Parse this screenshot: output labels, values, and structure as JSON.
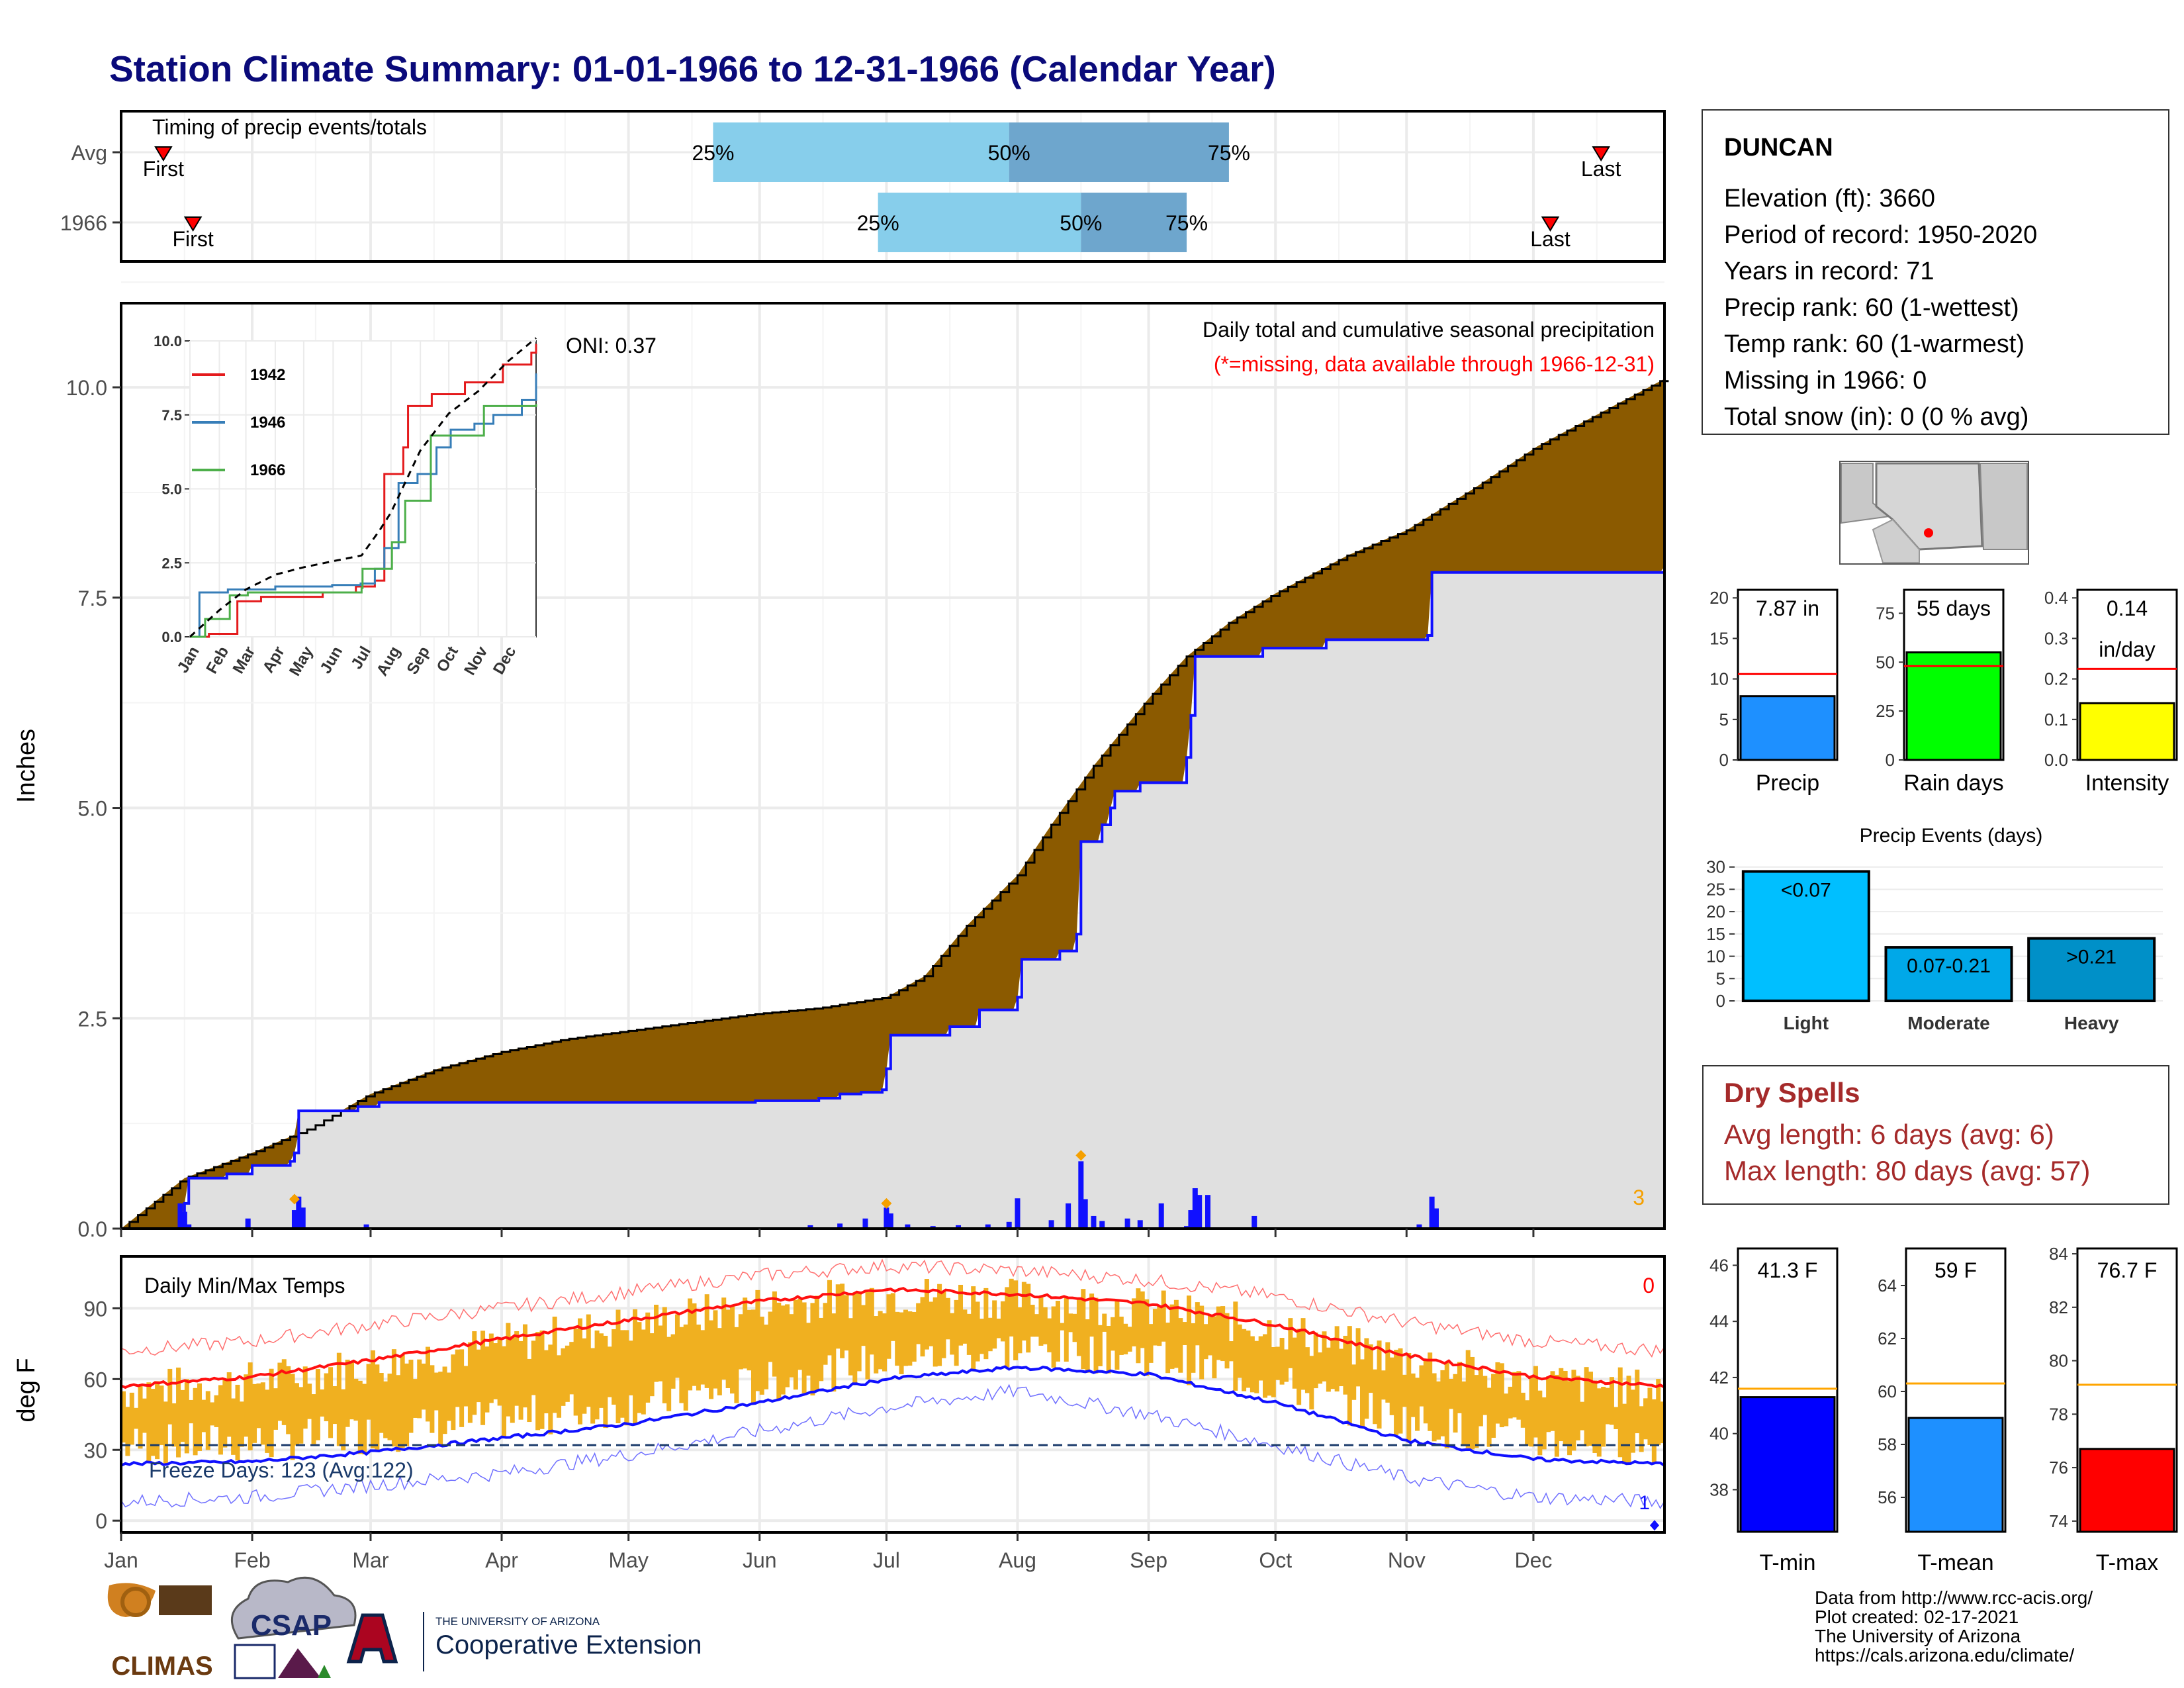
{
  "title": "Station Climate Summary: 01-01-1966 to 12-31-1966 (Calendar Year)",
  "colors": {
    "title": "#0a0a7a",
    "brown": "#8b5a00",
    "gray_fill": "#e0e0e0",
    "blue_line": "#1010ff",
    "green_fill": "#0a8a0a",
    "temp_bar": "#f0b020",
    "red_line": "#ff1010",
    "light_blue": "#87ceeb",
    "mid_blue": "#6ea6cd",
    "spell_red": "#a52a2a"
  },
  "months": [
    "Jan",
    "Feb",
    "Mar",
    "Apr",
    "May",
    "Jun",
    "Jul",
    "Aug",
    "Sep",
    "Oct",
    "Nov",
    "Dec"
  ],
  "timing": {
    "label": "Timing of precip events/totals",
    "rows": [
      {
        "name": "Avg",
        "first_doy": 10,
        "last_doy": 350,
        "p25_doy": 140,
        "p50_doy": 210,
        "p75_doy": 262
      },
      {
        "name": "1966",
        "first_doy": 17,
        "last_doy": 338,
        "p25_doy": 179,
        "p50_doy": 227,
        "p75_doy": 252
      }
    ],
    "labels": {
      "first": "First",
      "last": "Last",
      "p25": "25%",
      "p50": "50%",
      "p75": "75%"
    }
  },
  "precip_panel": {
    "ylabel": "Inches",
    "ylim": [
      0,
      11
    ],
    "yticks": [
      0.0,
      2.5,
      5.0,
      7.5,
      10.0
    ],
    "oni": "ONI: 0.37",
    "subtitle": "Daily total and cumulative seasonal precipitation",
    "note": "(*=missing, data available through 1966-12-31)",
    "corner_number": "3",
    "avg_cumulative": [
      [
        0,
        0
      ],
      [
        15,
        0.6
      ],
      [
        31,
        0.9
      ],
      [
        45,
        1.2
      ],
      [
        59,
        1.6
      ],
      [
        75,
        1.9
      ],
      [
        90,
        2.1
      ],
      [
        105,
        2.25
      ],
      [
        120,
        2.35
      ],
      [
        135,
        2.45
      ],
      [
        150,
        2.55
      ],
      [
        165,
        2.62
      ],
      [
        181,
        2.75
      ],
      [
        190,
        3.0
      ],
      [
        200,
        3.6
      ],
      [
        212,
        4.2
      ],
      [
        220,
        4.8
      ],
      [
        230,
        5.5
      ],
      [
        243,
        6.3
      ],
      [
        252,
        6.8
      ],
      [
        262,
        7.2
      ],
      [
        273,
        7.55
      ],
      [
        290,
        8.0
      ],
      [
        304,
        8.3
      ],
      [
        320,
        8.8
      ],
      [
        335,
        9.3
      ],
      [
        350,
        9.7
      ],
      [
        365,
        10.1
      ]
    ],
    "cumulative_1966": [
      [
        0,
        0
      ],
      [
        15,
        0.3
      ],
      [
        16,
        0.6
      ],
      [
        25,
        0.65
      ],
      [
        31,
        0.75
      ],
      [
        40,
        0.8
      ],
      [
        41,
        0.9
      ],
      [
        42,
        1.4
      ],
      [
        56,
        1.45
      ],
      [
        61,
        1.5
      ],
      [
        150,
        1.52
      ],
      [
        165,
        1.55
      ],
      [
        170,
        1.6
      ],
      [
        175,
        1.62
      ],
      [
        180,
        1.65
      ],
      [
        181,
        1.9
      ],
      [
        182,
        2.3
      ],
      [
        196,
        2.4
      ],
      [
        203,
        2.6
      ],
      [
        212,
        2.75
      ],
      [
        213,
        3.2
      ],
      [
        222,
        3.3
      ],
      [
        226,
        3.5
      ],
      [
        227,
        4.6
      ],
      [
        232,
        4.8
      ],
      [
        234,
        5.0
      ],
      [
        235,
        5.2
      ],
      [
        241,
        5.3
      ],
      [
        251,
        5.3
      ],
      [
        252,
        5.6
      ],
      [
        253,
        6.1
      ],
      [
        254,
        6.8
      ],
      [
        270,
        6.9
      ],
      [
        285,
        7.0
      ],
      [
        309,
        7.05
      ],
      [
        310,
        7.8
      ],
      [
        365,
        7.87
      ]
    ],
    "daily_bars": [
      [
        14,
        0.3
      ],
      [
        15,
        0.2
      ],
      [
        16,
        0.05
      ],
      [
        30,
        0.12
      ],
      [
        41,
        0.22
      ],
      [
        42,
        0.38
      ],
      [
        43,
        0.25
      ],
      [
        58,
        0.05
      ],
      [
        163,
        0.04
      ],
      [
        170,
        0.06
      ],
      [
        176,
        0.12
      ],
      [
        181,
        0.25
      ],
      [
        182,
        0.18
      ],
      [
        186,
        0.05
      ],
      [
        192,
        0.03
      ],
      [
        198,
        0.04
      ],
      [
        205,
        0.05
      ],
      [
        210,
        0.08
      ],
      [
        212,
        0.36
      ],
      [
        220,
        0.1
      ],
      [
        224,
        0.3
      ],
      [
        227,
        0.8
      ],
      [
        228,
        0.35
      ],
      [
        230,
        0.15
      ],
      [
        232,
        0.09
      ],
      [
        238,
        0.12
      ],
      [
        241,
        0.1
      ],
      [
        246,
        0.3
      ],
      [
        252,
        0.03
      ],
      [
        253,
        0.22
      ],
      [
        254,
        0.48
      ],
      [
        255,
        0.4
      ],
      [
        257,
        0.4
      ],
      [
        268,
        0.15
      ],
      [
        307,
        0.05
      ],
      [
        310,
        0.38
      ],
      [
        311,
        0.24
      ]
    ],
    "markers": [
      [
        41,
        0.35
      ],
      [
        181,
        0.3
      ],
      [
        227,
        0.87
      ]
    ]
  },
  "inset": {
    "ylim": [
      0,
      10
    ],
    "yticks": [
      "0.0",
      "2.5",
      "5.0",
      "7.5",
      "10.0"
    ],
    "legend": [
      "1942",
      "1946",
      "1966"
    ],
    "series": [
      {
        "name": "1942",
        "color": "#e41a1c",
        "points": [
          [
            0,
            0
          ],
          [
            20,
            0.1
          ],
          [
            45,
            0.1
          ],
          [
            50,
            1.2
          ],
          [
            75,
            1.35
          ],
          [
            140,
            1.5
          ],
          [
            175,
            1.7
          ],
          [
            195,
            1.9
          ],
          [
            205,
            5.5
          ],
          [
            225,
            6.4
          ],
          [
            230,
            7.8
          ],
          [
            255,
            8.2
          ],
          [
            290,
            8.6
          ],
          [
            330,
            9.2
          ],
          [
            360,
            9.6
          ],
          [
            365,
            9.9
          ]
        ]
      },
      {
        "name": "1946",
        "color": "#377eb8",
        "points": [
          [
            0,
            0
          ],
          [
            10,
            1.5
          ],
          [
            40,
            1.6
          ],
          [
            90,
            1.7
          ],
          [
            150,
            1.75
          ],
          [
            180,
            1.8
          ],
          [
            195,
            2.3
          ],
          [
            205,
            3.0
          ],
          [
            220,
            5.2
          ],
          [
            240,
            5.5
          ],
          [
            260,
            6.4
          ],
          [
            275,
            7.0
          ],
          [
            300,
            7.2
          ],
          [
            320,
            7.5
          ],
          [
            350,
            8.0
          ],
          [
            365,
            8.9
          ]
        ]
      },
      {
        "name": "1966",
        "color": "#4daf4a",
        "points": [
          [
            0,
            0
          ],
          [
            16,
            0.6
          ],
          [
            42,
            1.4
          ],
          [
            61,
            1.5
          ],
          [
            181,
            1.65
          ],
          [
            182,
            2.3
          ],
          [
            213,
            3.2
          ],
          [
            227,
            4.6
          ],
          [
            254,
            6.8
          ],
          [
            310,
            7.8
          ],
          [
            365,
            7.87
          ]
        ]
      }
    ],
    "avg_points": [
      [
        0,
        0
      ],
      [
        31,
        0.9
      ],
      [
        59,
        1.6
      ],
      [
        90,
        2.1
      ],
      [
        120,
        2.35
      ],
      [
        150,
        2.55
      ],
      [
        181,
        2.75
      ],
      [
        200,
        3.6
      ],
      [
        212,
        4.2
      ],
      [
        243,
        6.3
      ],
      [
        273,
        7.55
      ],
      [
        304,
        8.3
      ],
      [
        335,
        9.3
      ],
      [
        365,
        10.1
      ]
    ]
  },
  "temp_panel": {
    "ylabel": "deg F",
    "ylim": [
      -5,
      112
    ],
    "yticks": [
      0,
      30,
      60,
      90
    ],
    "label": "Daily Min/Max Temps",
    "corner_number": "0",
    "bottom_number": "1",
    "freeze_line": 32,
    "freeze_text": "Freeze Days: 123 (Avg:122)",
    "avg_max": [
      [
        0,
        57
      ],
      [
        31,
        61
      ],
      [
        59,
        68
      ],
      [
        90,
        77
      ],
      [
        120,
        85
      ],
      [
        151,
        93
      ],
      [
        181,
        98
      ],
      [
        212,
        96
      ],
      [
        243,
        92
      ],
      [
        273,
        83
      ],
      [
        304,
        70
      ],
      [
        334,
        61
      ],
      [
        365,
        57
      ]
    ],
    "avg_min": [
      [
        0,
        24
      ],
      [
        31,
        25
      ],
      [
        59,
        29
      ],
      [
        90,
        35
      ],
      [
        120,
        41
      ],
      [
        151,
        50
      ],
      [
        181,
        60
      ],
      [
        212,
        65
      ],
      [
        243,
        62
      ],
      [
        273,
        50
      ],
      [
        304,
        34
      ],
      [
        334,
        26
      ],
      [
        365,
        24
      ]
    ],
    "rec_max": [
      [
        0,
        72
      ],
      [
        31,
        76
      ],
      [
        59,
        83
      ],
      [
        90,
        90
      ],
      [
        120,
        97
      ],
      [
        151,
        104
      ],
      [
        181,
        108
      ],
      [
        212,
        106
      ],
      [
        243,
        102
      ],
      [
        273,
        95
      ],
      [
        304,
        84
      ],
      [
        334,
        76
      ],
      [
        365,
        72
      ]
    ],
    "rec_min": [
      [
        0,
        8
      ],
      [
        31,
        10
      ],
      [
        59,
        15
      ],
      [
        90,
        20
      ],
      [
        120,
        28
      ],
      [
        151,
        38
      ],
      [
        181,
        48
      ],
      [
        212,
        55
      ],
      [
        243,
        45
      ],
      [
        273,
        32
      ],
      [
        304,
        18
      ],
      [
        334,
        10
      ],
      [
        365,
        8
      ]
    ]
  },
  "station": {
    "name": "DUNCAN",
    "lines": [
      "Elevation (ft): 3660",
      "Period of record: 1950-2020",
      "Years in record: 71",
      "Precip rank: 60 (1-wettest)",
      "Temp rank: 60 (1-warmest)",
      "Missing in 1966: 0",
      "Total snow (in): 0 (0 % avg)"
    ]
  },
  "mini_bars": [
    {
      "label": "Precip",
      "value_text": "7.87 in",
      "value": 7.87,
      "avg": 10.6,
      "ymax": 21,
      "yticks": [
        "0",
        "5",
        "10",
        "15",
        "20"
      ],
      "tickvals": [
        0,
        5,
        10,
        15,
        20
      ],
      "color": "#1e90ff"
    },
    {
      "label": "Rain days",
      "value_text": "55 days",
      "value": 55,
      "avg": 48,
      "ymax": 87,
      "yticks": [
        "0",
        "25",
        "50",
        "75"
      ],
      "tickvals": [
        0,
        25,
        50,
        75
      ],
      "color": "#00ff00"
    },
    {
      "label": "Intensity",
      "value_text": "0.14",
      "value_text2": "in/day",
      "value": 0.14,
      "avg": 0.225,
      "ymax": 0.42,
      "yticks": [
        "0.0",
        "0.1",
        "0.2",
        "0.3",
        "0.4"
      ],
      "tickvals": [
        0,
        0.1,
        0.2,
        0.3,
        0.4
      ],
      "color": "#ffff00"
    }
  ],
  "events": {
    "title": "Precip Events (days)",
    "ymax": 31,
    "yticks": [
      "0",
      "5",
      "10",
      "15",
      "20",
      "25",
      "30"
    ],
    "bars": [
      {
        "label": "Light",
        "range": "<0.07",
        "value": 29,
        "color": "#00bfff"
      },
      {
        "label": "Moderate",
        "range": "0.07-0.21",
        "value": 12,
        "color": "#00a8e8"
      },
      {
        "label": "Heavy",
        "range": ">0.21",
        "value": 14,
        "color": "#0090c8"
      }
    ]
  },
  "dry_spells": {
    "title": "Dry Spells",
    "lines": [
      "Avg length: 6 days (avg: 6)",
      "Max length: 80 days (avg: 57)"
    ]
  },
  "temp_bars": [
    {
      "label": "T-min",
      "value_text": "41.3 F",
      "value": 41.3,
      "avg": 41.6,
      "ymin": 36.5,
      "ymax": 46.6,
      "tickvals": [
        38,
        40,
        42,
        44,
        46
      ],
      "color": "#0000ff"
    },
    {
      "label": "T-mean",
      "value_text": "59 F",
      "value": 59.0,
      "avg": 60.3,
      "ymin": 54.7,
      "ymax": 65.4,
      "tickvals": [
        56,
        58,
        60,
        62,
        64
      ],
      "color": "#1e90ff"
    },
    {
      "label": "T-max",
      "value_text": "76.7 F",
      "value": 76.7,
      "avg": 79.1,
      "ymin": 73.6,
      "ymax": 84.2,
      "tickvals": [
        74,
        76,
        78,
        80,
        82,
        84
      ],
      "color": "#ff0000"
    }
  ],
  "logos": {
    "climas": "CLIMAS",
    "csap": "CSAP",
    "ua_small": "THE UNIVERSITY OF ARIZONA",
    "ua_ext": "Cooperative Extension"
  },
  "footer": [
    "Data from http://www.rcc-acis.org/",
    "Plot created: 02-17-2021",
    "The University of Arizona",
    "https://cals.arizona.edu/climate/"
  ]
}
